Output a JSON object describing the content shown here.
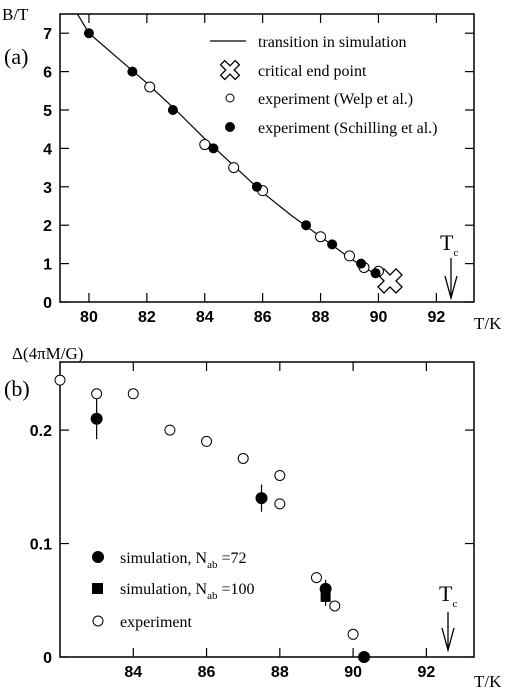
{
  "chart_data": [
    {
      "type": "scatter",
      "panel_label": "(a)",
      "ylabel": "B/T",
      "xlabel": "T/K",
      "xlim": [
        79,
        93.3
      ],
      "ylim": [
        0,
        7.5
      ],
      "xticks": [
        80,
        82,
        84,
        86,
        88,
        90,
        92
      ],
      "yticks": [
        0,
        1,
        2,
        3,
        4,
        5,
        6,
        7
      ],
      "marker_label": "T",
      "marker_sub": "c",
      "marker_x": 92.5,
      "legend": {
        "placement": "top-right",
        "line": "transition in simulation",
        "cross": "critical end point",
        "open": "experiment (Welp et al.)",
        "filled": "experiment (Schilling et al.)"
      },
      "series": [
        {
          "name": "transition in simulation",
          "style": "line",
          "x": [
            79.6,
            80.0,
            81.0,
            82.0,
            83.0,
            84.0,
            85.0,
            86.0,
            87.0,
            88.0,
            89.0,
            89.6,
            90.0,
            90.4
          ],
          "y": [
            7.5,
            7.0,
            6.35,
            5.7,
            5.0,
            4.25,
            3.55,
            2.85,
            2.25,
            1.7,
            1.15,
            0.85,
            0.7,
            0.55
          ]
        },
        {
          "name": "critical end point",
          "style": "cross",
          "x": [
            90.4
          ],
          "y": [
            0.55
          ]
        },
        {
          "name": "experiment (Welp et al.)",
          "style": "open",
          "x": [
            82.1,
            84.0,
            85.0,
            86.0,
            88.0,
            89.0,
            89.5,
            90.0
          ],
          "y": [
            5.6,
            4.1,
            3.5,
            2.9,
            1.7,
            1.2,
            0.9,
            0.8
          ]
        },
        {
          "name": "experiment (Schilling et al.)",
          "style": "filled",
          "x": [
            80.0,
            81.5,
            82.9,
            84.3,
            85.8,
            87.5,
            88.4,
            89.4,
            89.9
          ],
          "y": [
            7.0,
            6.0,
            5.0,
            4.0,
            3.0,
            2.0,
            1.5,
            1.0,
            0.75
          ]
        }
      ]
    },
    {
      "type": "scatter",
      "panel_label": "(b)",
      "ylabel": "Δ(4πM/G)",
      "xlabel": "T/K",
      "xlim": [
        82.0,
        93.3
      ],
      "ylim": [
        0,
        0.26
      ],
      "xticks": [
        84,
        86,
        88,
        90,
        92
      ],
      "yticks": [
        0,
        0.1,
        0.2
      ],
      "ytick_labels": [
        "0",
        "0.1",
        "0.2"
      ],
      "marker_label": "T",
      "marker_sub": "c",
      "marker_x": 92.5,
      "legend": {
        "placement": "bottom-left",
        "sim72_pre": "simulation, N",
        "sim72_sub": "ab",
        "sim72_post": " =72",
        "sim100_pre": "simulation, N",
        "sim100_sub": "ab",
        "sim100_post": " =100",
        "exp": "experiment"
      },
      "series": [
        {
          "name": "simulation, Nab=72",
          "style": "filled",
          "x": [
            83.0,
            87.5,
            89.25,
            90.3
          ],
          "y": [
            0.21,
            0.14,
            0.06,
            0.0
          ],
          "err": [
            0.018,
            0.012,
            0.008,
            0.005
          ]
        },
        {
          "name": "simulation, Nab=100",
          "style": "square",
          "x": [
            89.25
          ],
          "y": [
            0.053
          ],
          "err": [
            0.008
          ]
        },
        {
          "name": "experiment",
          "style": "open",
          "x": [
            82.0,
            83.0,
            84.0,
            85.0,
            86.0,
            87.0,
            88.0,
            88.0,
            89.0,
            89.5,
            90.0
          ],
          "y": [
            0.244,
            0.232,
            0.232,
            0.2,
            0.19,
            0.175,
            0.16,
            0.135,
            0.07,
            0.045,
            0.02
          ]
        }
      ]
    }
  ]
}
